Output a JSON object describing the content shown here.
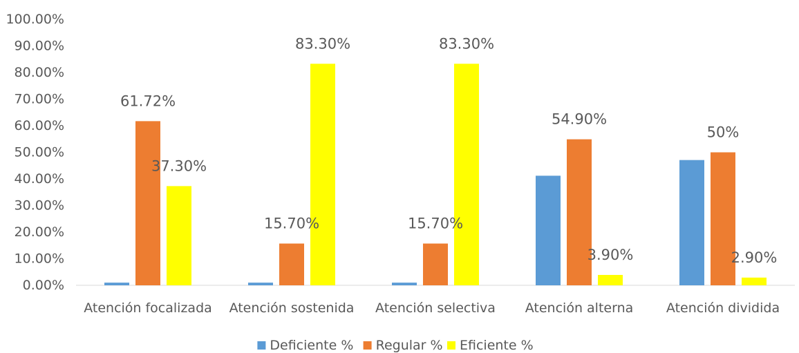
{
  "chart_data": {
    "type": "bar",
    "title": "",
    "xlabel": "",
    "ylabel": "",
    "ylim": [
      0,
      100
    ],
    "y_ticks": [
      "0.00%",
      "10.00%",
      "20.00%",
      "30.00%",
      "40.00%",
      "50.00%",
      "60.00%",
      "70.00%",
      "80.00%",
      "90.00%",
      "100.00%"
    ],
    "categories": [
      "Atención focalizada",
      "Atención sostenida",
      "Atención selectiva",
      "Atención alterna",
      "Atención dividida"
    ],
    "grid": false,
    "legend_position": "bottom",
    "series": [
      {
        "name": "Deficiente %",
        "color": "#5B9BD5",
        "values": [
          1.0,
          1.0,
          1.0,
          41.2,
          47.1
        ],
        "labels": [
          "",
          "",
          "",
          "",
          ""
        ]
      },
      {
        "name": "Regular %",
        "color": "#ED7D31",
        "values": [
          61.72,
          15.7,
          15.7,
          54.9,
          50.0
        ],
        "labels": [
          "61.72%",
          "15.70%",
          "15.70%",
          "54.90%",
          "50%"
        ]
      },
      {
        "name": "Eficiente %",
        "color": "#FFFF00",
        "values": [
          37.3,
          83.3,
          83.3,
          3.9,
          2.9
        ],
        "labels": [
          "37.30%",
          "83.30%",
          "83.30%",
          "3.90%",
          "2.90%"
        ]
      }
    ]
  }
}
